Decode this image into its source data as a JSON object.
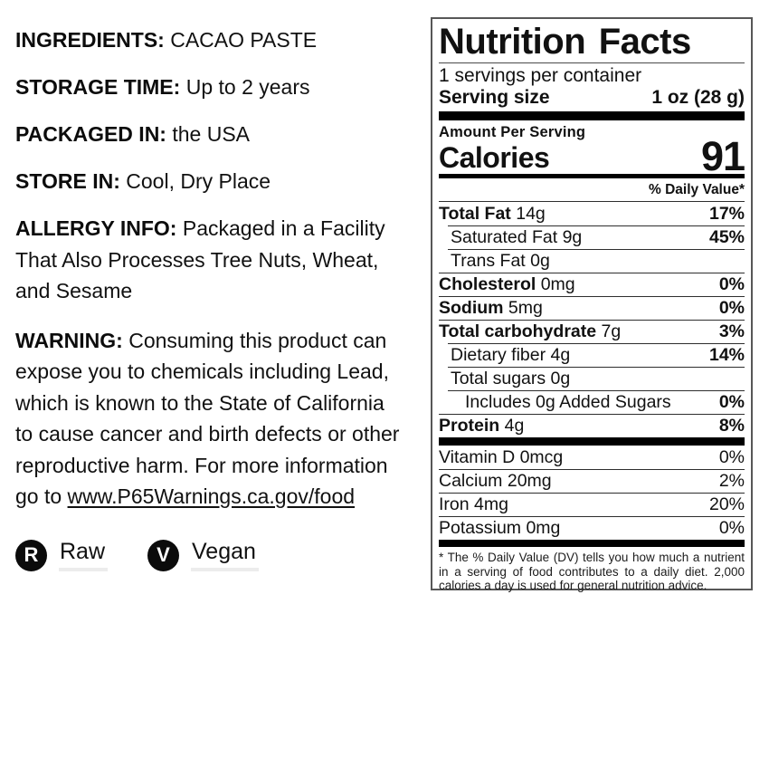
{
  "left": {
    "info_lines": [
      {
        "label": "INGREDIENTS:",
        "value": "CACAO PASTE"
      },
      {
        "label": "STORAGE TIME:",
        "value": "Up to 2 years"
      },
      {
        "label": "PACKAGED IN:",
        "value": "the USA"
      },
      {
        "label": "STORE IN:",
        "value": "Cool, Dry Place"
      }
    ],
    "allergy": {
      "label": "ALLERGY INFO:",
      "lines": [
        "Packaged in a Facility",
        "That Also Processes Tree Nuts, Wheat,",
        "and Sesame"
      ]
    },
    "warning": {
      "label": "WARNING:",
      "lines": [
        "Consuming this product can",
        "expose you to chemicals including Lead,",
        "which is known to the State of California",
        "to cause cancer and birth defects or other",
        "reproductive harm. For more information",
        "go to "
      ],
      "link": "www.P65Warnings.ca.gov/food"
    },
    "badges": [
      {
        "initial": "R",
        "label": "Raw"
      },
      {
        "initial": "V",
        "label": "Vegan"
      }
    ]
  },
  "nutrition": {
    "title": "Nutrition Facts",
    "servings_per_container": "1 servings per container",
    "serving_size_label": "Serving size",
    "serving_size_value": "1 oz (28 g)",
    "amount_per_serving": "Amount Per Serving",
    "calories_label": "Calories",
    "calories_value": "91",
    "daily_value_header": "% Daily Value*",
    "rows": [
      {
        "name": "Total Fat",
        "amount": "14g",
        "dv": "17%",
        "bold": true,
        "bold_dv": true,
        "indent": 0,
        "sep": "none"
      },
      {
        "name": "Saturated Fat",
        "amount": "9g",
        "dv": "45%",
        "bold": false,
        "bold_dv": true,
        "indent": 1,
        "sep": "indent"
      },
      {
        "name": "Trans Fat",
        "amount": "0g",
        "dv": "",
        "bold": false,
        "bold_dv": false,
        "indent": 1,
        "sep": "indent"
      },
      {
        "name": "Cholesterol",
        "amount": "0mg",
        "dv": "0%",
        "bold": true,
        "bold_dv": true,
        "indent": 0,
        "sep": "full"
      },
      {
        "name": "Sodium",
        "amount": "5mg",
        "dv": "0%",
        "bold": true,
        "bold_dv": true,
        "indent": 0,
        "sep": "full"
      },
      {
        "name": "Total carbohydrate",
        "amount": "7g",
        "dv": "3%",
        "bold": true,
        "bold_dv": true,
        "indent": 0,
        "sep": "full"
      },
      {
        "name": "Dietary fiber",
        "amount": "4g",
        "dv": "14%",
        "bold": false,
        "bold_dv": true,
        "indent": 1,
        "sep": "indent"
      },
      {
        "name": "Total sugars",
        "amount": "0g",
        "dv": "",
        "bold": false,
        "bold_dv": false,
        "indent": 1,
        "sep": "indent"
      },
      {
        "name": "Includes 0g Added Sugars",
        "amount": "",
        "dv": "0%",
        "bold": false,
        "bold_dv": true,
        "indent": 2,
        "sep": "indent"
      },
      {
        "name": "Protein",
        "amount": "4g",
        "dv": "8%",
        "bold": true,
        "bold_dv": true,
        "indent": 0,
        "sep": "full"
      }
    ],
    "micronutrients": [
      {
        "name": "Vitamin D",
        "amount": "0mcg",
        "dv": "0%"
      },
      {
        "name": "Calcium",
        "amount": "20mg",
        "dv": "2%"
      },
      {
        "name": "Iron",
        "amount": "4mg",
        "dv": "20%"
      },
      {
        "name": "Potassium",
        "amount": "0mg",
        "dv": "0%"
      }
    ],
    "footnote": "* The % Daily Value (DV) tells you how much a nutrient in a serving of food contributes to a daily diet. 2,000 calories a day is used for general nutrition advice."
  },
  "colors": {
    "text": "#111111",
    "label_border": "#575757",
    "thick_bar": "#000000",
    "badge_bg": "#0b0b0b",
    "badge_underline": "#ececec"
  }
}
